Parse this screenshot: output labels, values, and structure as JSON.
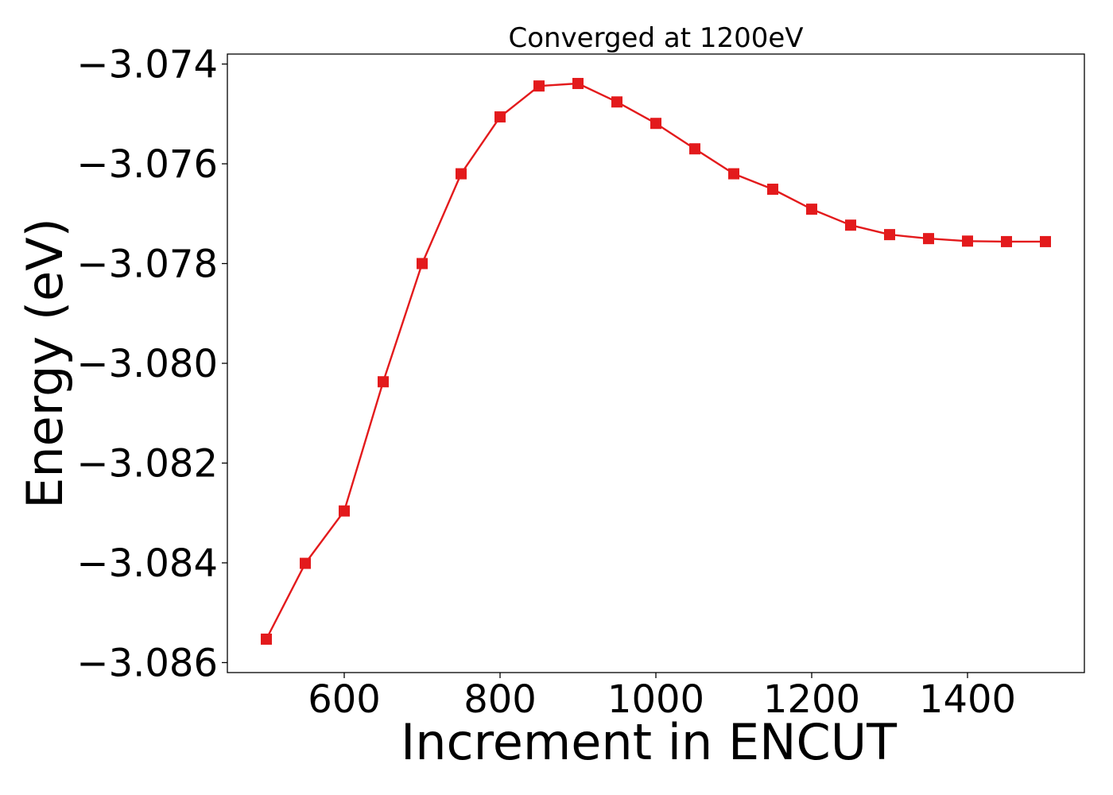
{
  "chart_data": {
    "type": "line",
    "title": "Converged at 1200eV",
    "xlabel": "Increment in ENCUT",
    "ylabel": "Energy (eV)",
    "xlim": [
      450,
      1550
    ],
    "ylim": [
      -3.0862,
      -3.0738
    ],
    "x_ticks": [
      600,
      800,
      1000,
      1200,
      1400
    ],
    "x_tick_labels": [
      "600",
      "800",
      "1000",
      "1200",
      "1400"
    ],
    "y_ticks": [
      -3.086,
      -3.084,
      -3.082,
      -3.08,
      -3.078,
      -3.076,
      -3.074
    ],
    "y_tick_labels": [
      "−3.086",
      "−3.084",
      "−3.082",
      "−3.080",
      "−3.078",
      "−3.076",
      "−3.074"
    ],
    "grid": false,
    "legend": "none",
    "series": [
      {
        "color": "#e31a1c",
        "marker": "square",
        "x": [
          500,
          550,
          600,
          650,
          700,
          750,
          800,
          850,
          900,
          950,
          1000,
          1050,
          1100,
          1150,
          1200,
          1250,
          1300,
          1350,
          1400,
          1450,
          1500
        ],
        "y": [
          -3.08553,
          -3.08401,
          -3.08296,
          -3.08037,
          -3.078,
          -3.0762,
          -3.07506,
          -3.07444,
          -3.07439,
          -3.07476,
          -3.07519,
          -3.0757,
          -3.0762,
          -3.07651,
          -3.07691,
          -3.07723,
          -3.07742,
          -3.0775,
          -3.07755,
          -3.07756,
          -3.07756
        ]
      }
    ]
  }
}
